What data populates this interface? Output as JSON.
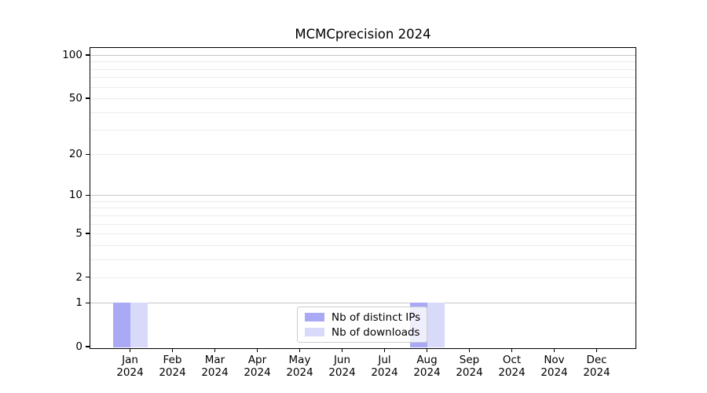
{
  "title": "MCMCprecision 2024",
  "chart_data": {
    "type": "bar",
    "title": "MCMCprecision 2024",
    "categories": [
      "Jan 2024",
      "Feb 2024",
      "Mar 2024",
      "Apr 2024",
      "May 2024",
      "Jun 2024",
      "Jul 2024",
      "Aug 2024",
      "Sep 2024",
      "Oct 2024",
      "Nov 2024",
      "Dec 2024"
    ],
    "x_tick_labels": [
      {
        "month": "Jan",
        "year": "2024"
      },
      {
        "month": "Feb",
        "year": "2024"
      },
      {
        "month": "Mar",
        "year": "2024"
      },
      {
        "month": "Apr",
        "year": "2024"
      },
      {
        "month": "May",
        "year": "2024"
      },
      {
        "month": "Jun",
        "year": "2024"
      },
      {
        "month": "Jul",
        "year": "2024"
      },
      {
        "month": "Aug",
        "year": "2024"
      },
      {
        "month": "Sep",
        "year": "2024"
      },
      {
        "month": "Oct",
        "year": "2024"
      },
      {
        "month": "Nov",
        "year": "2024"
      },
      {
        "month": "Dec",
        "year": "2024"
      }
    ],
    "series": [
      {
        "name": "Nb of distinct IPs",
        "color": "#a9a9f6",
        "values": [
          1,
          0,
          0,
          0,
          0,
          0,
          0,
          1,
          0,
          0,
          0,
          0
        ]
      },
      {
        "name": "Nb of downloads",
        "color": "#d9d9f9",
        "values": [
          1,
          0,
          0,
          0,
          0,
          0,
          0,
          1,
          0,
          0,
          0,
          0
        ]
      }
    ],
    "yscale": "log1p",
    "y_tick_values": [
      0,
      1,
      2,
      5,
      10,
      20,
      50,
      100
    ],
    "y_major_grid_values": [
      1,
      10,
      100
    ],
    "y_minor_grid_values": [
      2,
      3,
      4,
      5,
      6,
      7,
      8,
      9,
      20,
      30,
      40,
      50,
      60,
      70,
      80,
      90
    ],
    "grid": true,
    "legend_position": "lower center"
  },
  "colors": {
    "spine": "#000000",
    "major_grid": "#c6c6c6",
    "minor_grid": "#ececec",
    "legend_border": "#cccccc"
  }
}
